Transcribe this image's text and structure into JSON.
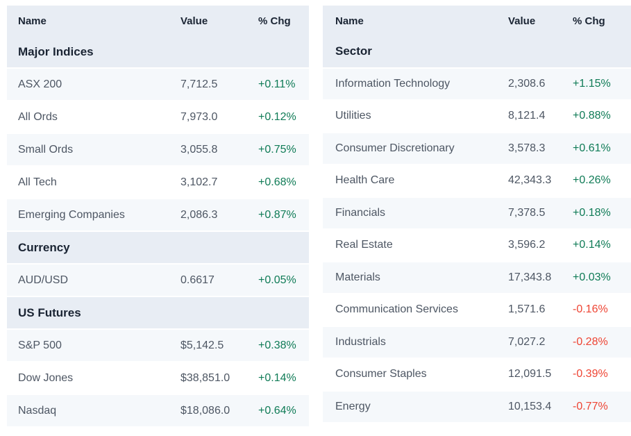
{
  "colors": {
    "header_bg": "#e8edf4",
    "stripe_bg": "#f5f8fb",
    "row_bg": "#ffffff",
    "heading_text": "#1a2433",
    "data_text": "#4d5663",
    "positive": "#0f7b56",
    "negative": "#ee4433"
  },
  "left_table": {
    "columns": [
      "Name",
      "Value",
      "% Chg"
    ],
    "sections": [
      {
        "title": "Major Indices",
        "rows": [
          {
            "name": "ASX 200",
            "value": "7,712.5",
            "chg": "+0.11%",
            "dir": "up"
          },
          {
            "name": "All Ords",
            "value": "7,973.0",
            "chg": "+0.12%",
            "dir": "up"
          },
          {
            "name": "Small Ords",
            "value": "3,055.8",
            "chg": "+0.75%",
            "dir": "up"
          },
          {
            "name": "All Tech",
            "value": "3,102.7",
            "chg": "+0.68%",
            "dir": "up"
          },
          {
            "name": "Emerging Companies",
            "value": "2,086.3",
            "chg": "+0.87%",
            "dir": "up"
          }
        ]
      },
      {
        "title": "Currency",
        "rows": [
          {
            "name": "AUD/USD",
            "value": "0.6617",
            "chg": "+0.05%",
            "dir": "up"
          }
        ]
      },
      {
        "title": "US Futures",
        "rows": [
          {
            "name": "S&P 500",
            "value": "$5,142.5",
            "chg": "+0.38%",
            "dir": "up"
          },
          {
            "name": "Dow Jones",
            "value": "$38,851.0",
            "chg": "+0.14%",
            "dir": "up"
          },
          {
            "name": "Nasdaq",
            "value": "$18,086.0",
            "chg": "+0.64%",
            "dir": "up"
          }
        ]
      }
    ]
  },
  "right_table": {
    "columns": [
      "Name",
      "Value",
      "% Chg"
    ],
    "sections": [
      {
        "title": "Sector",
        "rows": [
          {
            "name": "Information Technology",
            "value": "2,308.6",
            "chg": "+1.15%",
            "dir": "up"
          },
          {
            "name": "Utilities",
            "value": "8,121.4",
            "chg": "+0.88%",
            "dir": "up"
          },
          {
            "name": "Consumer Discretionary",
            "value": "3,578.3",
            "chg": "+0.61%",
            "dir": "up"
          },
          {
            "name": "Health Care",
            "value": "42,343.3",
            "chg": "+0.26%",
            "dir": "up"
          },
          {
            "name": "Financials",
            "value": "7,378.5",
            "chg": "+0.18%",
            "dir": "up"
          },
          {
            "name": "Real Estate",
            "value": "3,596.2",
            "chg": "+0.14%",
            "dir": "up"
          },
          {
            "name": "Materials",
            "value": "17,343.8",
            "chg": "+0.03%",
            "dir": "up"
          },
          {
            "name": "Communication Services",
            "value": "1,571.6",
            "chg": "-0.16%",
            "dir": "down"
          },
          {
            "name": "Industrials",
            "value": "7,027.2",
            "chg": "-0.28%",
            "dir": "down"
          },
          {
            "name": "Consumer Staples",
            "value": "12,091.5",
            "chg": "-0.39%",
            "dir": "down"
          },
          {
            "name": "Energy",
            "value": "10,153.4",
            "chg": "-0.77%",
            "dir": "down"
          }
        ]
      }
    ]
  }
}
